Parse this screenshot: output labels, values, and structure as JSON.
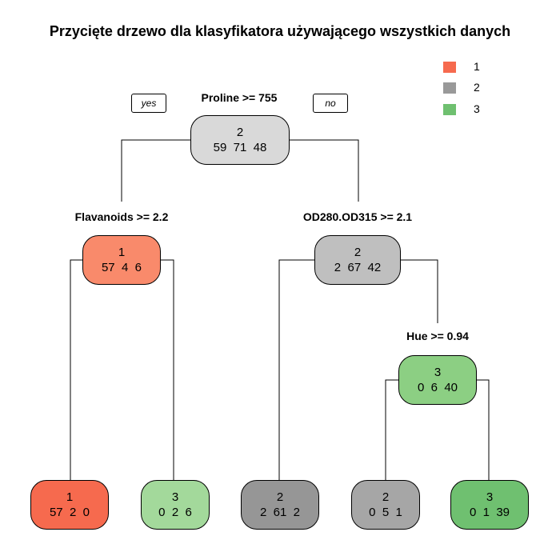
{
  "title": "Przycięte drzewo dla klasyfikatora używającego wszystkich danych",
  "legend": [
    {
      "label": "1",
      "color": "#f66a4e"
    },
    {
      "label": "2",
      "color": "#999999"
    },
    {
      "label": "3",
      "color": "#6fc070"
    }
  ],
  "yes_label": "yes",
  "no_label": "no",
  "splits": {
    "root": "Proline >= 755",
    "left": "Flavanoids >= 2.2",
    "right": "OD280.OD315 >= 2.1",
    "right_right": "Hue >= 0.94"
  },
  "nodes": {
    "root": {
      "class": "2",
      "counts": "59  71  48",
      "color": "#d9d9d9"
    },
    "left": {
      "class": "1",
      "counts": "57  4  6",
      "color": "#f98a6b"
    },
    "right": {
      "class": "2",
      "counts": "2  67  42",
      "color": "#bfbfbf"
    },
    "right_right": {
      "class": "3",
      "counts": "0  6  40",
      "color": "#8ccf83"
    },
    "leaf1": {
      "class": "1",
      "counts": "57  2  0",
      "color": "#f66a4e"
    },
    "leaf2": {
      "class": "3",
      "counts": "0  2  6",
      "color": "#a3d99b"
    },
    "leaf3": {
      "class": "2",
      "counts": "2  61  2",
      "color": "#969696"
    },
    "leaf4": {
      "class": "2",
      "counts": "0  5  1",
      "color": "#a6a6a6"
    },
    "leaf5": {
      "class": "3",
      "counts": "0  1  39",
      "color": "#6fc070"
    }
  }
}
